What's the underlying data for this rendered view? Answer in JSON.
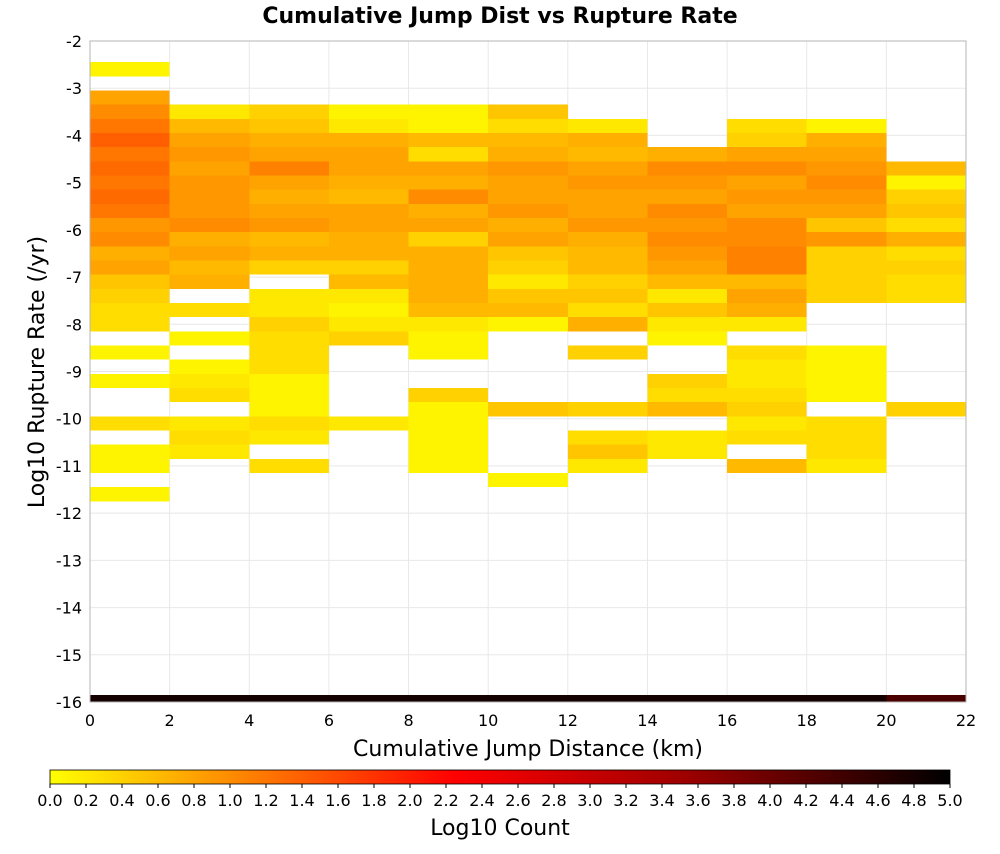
{
  "chart_data": {
    "type": "heatmap",
    "title": "Cumulative Jump Dist vs Rupture Rate",
    "xlabel": "Cumulative Jump Distance (km)",
    "ylabel": "Log10 Rupture Rate (/yr)",
    "xlim": [
      0,
      22
    ],
    "ylim": [
      -16,
      -2
    ],
    "x_ticks": [
      "0",
      "2",
      "4",
      "6",
      "8",
      "10",
      "12",
      "14",
      "16",
      "18",
      "20",
      "22"
    ],
    "y_ticks": [
      "-16",
      "-15",
      "-14",
      "-13",
      "-12",
      "-11",
      "-10",
      "-9",
      "-8",
      "-7",
      "-6",
      "-5",
      "-4",
      "-3",
      "-2"
    ],
    "grid": true,
    "x_bin_width": 2,
    "y_bin_height": 0.3,
    "colorbar": {
      "label": "Log10 Count",
      "min": 0.0,
      "max": 5.0,
      "ticks": [
        "0.0",
        "0.2",
        "0.4",
        "0.6",
        "0.8",
        "1.0",
        "1.2",
        "1.4",
        "1.6",
        "1.8",
        "2.0",
        "2.2",
        "2.4",
        "2.6",
        "2.8",
        "3.0",
        "3.2",
        "3.4",
        "3.6",
        "3.8",
        "4.0",
        "4.2",
        "4.4",
        "4.6",
        "4.8",
        "5.0"
      ],
      "stops": [
        [
          0.0,
          "#ffff00"
        ],
        [
          0.2,
          "#ff8c00"
        ],
        [
          0.45,
          "#ff0000"
        ],
        [
          0.7,
          "#a00000"
        ],
        [
          1.0,
          "#000000"
        ]
      ]
    },
    "columns": [
      {
        "x": 0,
        "rows": [
          {
            "y": -2.6,
            "v": 0.1
          },
          {
            "y": -3.2,
            "v": 0.8
          },
          {
            "y": -3.5,
            "v": 1.0
          },
          {
            "y": -3.8,
            "v": 1.2
          },
          {
            "y": -4.1,
            "v": 1.4
          },
          {
            "y": -4.4,
            "v": 1.2
          },
          {
            "y": -4.7,
            "v": 1.3
          },
          {
            "y": -5.0,
            "v": 1.2
          },
          {
            "y": -5.3,
            "v": 1.3
          },
          {
            "y": -5.6,
            "v": 1.2
          },
          {
            "y": -5.9,
            "v": 0.9
          },
          {
            "y": -6.2,
            "v": 1.0
          },
          {
            "y": -6.5,
            "v": 0.7
          },
          {
            "y": -6.8,
            "v": 0.8
          },
          {
            "y": -7.1,
            "v": 0.5
          },
          {
            "y": -7.4,
            "v": 0.4
          },
          {
            "y": -7.7,
            "v": 0.3
          },
          {
            "y": -8.0,
            "v": 0.3
          },
          {
            "y": -8.6,
            "v": 0.1
          },
          {
            "y": -9.2,
            "v": 0.1
          },
          {
            "y": -10.1,
            "v": 0.3
          },
          {
            "y": -10.7,
            "v": 0.1
          },
          {
            "y": -11.0,
            "v": 0.1
          },
          {
            "y": -11.6,
            "v": 0.1
          },
          {
            "y": -16.0,
            "v": 4.8
          }
        ]
      },
      {
        "x": 2,
        "rows": [
          {
            "y": -3.5,
            "v": 0.2
          },
          {
            "y": -3.8,
            "v": 0.6
          },
          {
            "y": -4.1,
            "v": 0.8
          },
          {
            "y": -4.4,
            "v": 0.9
          },
          {
            "y": -4.7,
            "v": 0.8
          },
          {
            "y": -5.0,
            "v": 0.9
          },
          {
            "y": -5.3,
            "v": 0.9
          },
          {
            "y": -5.6,
            "v": 0.9
          },
          {
            "y": -5.9,
            "v": 1.0
          },
          {
            "y": -6.2,
            "v": 0.7
          },
          {
            "y": -6.5,
            "v": 0.8
          },
          {
            "y": -6.8,
            "v": 0.6
          },
          {
            "y": -7.1,
            "v": 0.7
          },
          {
            "y": -7.7,
            "v": 0.3
          },
          {
            "y": -8.3,
            "v": 0.1
          },
          {
            "y": -8.9,
            "v": 0.1
          },
          {
            "y": -9.2,
            "v": 0.2
          },
          {
            "y": -9.5,
            "v": 0.3
          },
          {
            "y": -10.1,
            "v": 0.2
          },
          {
            "y": -10.4,
            "v": 0.3
          },
          {
            "y": -10.7,
            "v": 0.2
          },
          {
            "y": -16.0,
            "v": 4.8
          }
        ]
      },
      {
        "x": 4,
        "rows": [
          {
            "y": -3.5,
            "v": 0.4
          },
          {
            "y": -3.8,
            "v": 0.5
          },
          {
            "y": -4.1,
            "v": 0.7
          },
          {
            "y": -4.4,
            "v": 0.8
          },
          {
            "y": -4.7,
            "v": 1.1
          },
          {
            "y": -5.0,
            "v": 0.8
          },
          {
            "y": -5.3,
            "v": 0.7
          },
          {
            "y": -5.6,
            "v": 0.8
          },
          {
            "y": -5.9,
            "v": 0.9
          },
          {
            "y": -6.2,
            "v": 0.6
          },
          {
            "y": -6.5,
            "v": 0.7
          },
          {
            "y": -6.8,
            "v": 0.4
          },
          {
            "y": -7.4,
            "v": 0.2
          },
          {
            "y": -7.7,
            "v": 0.2
          },
          {
            "y": -8.0,
            "v": 0.4
          },
          {
            "y": -8.3,
            "v": 0.3
          },
          {
            "y": -8.6,
            "v": 0.3
          },
          {
            "y": -8.9,
            "v": 0.3
          },
          {
            "y": -9.2,
            "v": 0.1
          },
          {
            "y": -9.5,
            "v": 0.1
          },
          {
            "y": -9.8,
            "v": 0.1
          },
          {
            "y": -10.1,
            "v": 0.3
          },
          {
            "y": -10.4,
            "v": 0.2
          },
          {
            "y": -11.0,
            "v": 0.3
          },
          {
            "y": -16.0,
            "v": 4.8
          }
        ]
      },
      {
        "x": 6,
        "rows": [
          {
            "y": -3.5,
            "v": 0.1
          },
          {
            "y": -3.8,
            "v": 0.2
          },
          {
            "y": -4.1,
            "v": 0.7
          },
          {
            "y": -4.4,
            "v": 0.8
          },
          {
            "y": -4.7,
            "v": 0.8
          },
          {
            "y": -5.0,
            "v": 0.7
          },
          {
            "y": -5.3,
            "v": 0.6
          },
          {
            "y": -5.6,
            "v": 0.8
          },
          {
            "y": -5.9,
            "v": 0.8
          },
          {
            "y": -6.2,
            "v": 0.7
          },
          {
            "y": -6.5,
            "v": 0.7
          },
          {
            "y": -6.8,
            "v": 0.4
          },
          {
            "y": -7.1,
            "v": 0.6
          },
          {
            "y": -7.4,
            "v": 0.2
          },
          {
            "y": -7.7,
            "v": 0.1
          },
          {
            "y": -8.0,
            "v": 0.2
          },
          {
            "y": -8.3,
            "v": 0.4
          },
          {
            "y": -10.1,
            "v": 0.2
          },
          {
            "y": -16.0,
            "v": 4.8
          }
        ]
      },
      {
        "x": 8,
        "rows": [
          {
            "y": -3.5,
            "v": 0.1
          },
          {
            "y": -3.8,
            "v": 0.1
          },
          {
            "y": -4.1,
            "v": 0.6
          },
          {
            "y": -4.4,
            "v": 0.3
          },
          {
            "y": -4.7,
            "v": 0.8
          },
          {
            "y": -5.0,
            "v": 0.7
          },
          {
            "y": -5.3,
            "v": 1.0
          },
          {
            "y": -5.6,
            "v": 0.7
          },
          {
            "y": -5.9,
            "v": 0.8
          },
          {
            "y": -6.2,
            "v": 0.4
          },
          {
            "y": -6.5,
            "v": 0.7
          },
          {
            "y": -6.8,
            "v": 0.7
          },
          {
            "y": -7.1,
            "v": 0.7
          },
          {
            "y": -7.4,
            "v": 0.7
          },
          {
            "y": -7.7,
            "v": 0.6
          },
          {
            "y": -8.0,
            "v": 0.2
          },
          {
            "y": -8.3,
            "v": 0.1
          },
          {
            "y": -8.6,
            "v": 0.1
          },
          {
            "y": -9.5,
            "v": 0.4
          },
          {
            "y": -9.8,
            "v": 0.1
          },
          {
            "y": -10.1,
            "v": 0.1
          },
          {
            "y": -10.4,
            "v": 0.1
          },
          {
            "y": -10.7,
            "v": 0.1
          },
          {
            "y": -11.0,
            "v": 0.1
          },
          {
            "y": -16.0,
            "v": 4.8
          }
        ]
      },
      {
        "x": 10,
        "rows": [
          {
            "y": -3.5,
            "v": 0.5
          },
          {
            "y": -3.8,
            "v": 0.3
          },
          {
            "y": -4.1,
            "v": 0.6
          },
          {
            "y": -4.4,
            "v": 0.7
          },
          {
            "y": -4.7,
            "v": 0.9
          },
          {
            "y": -5.0,
            "v": 0.8
          },
          {
            "y": -5.3,
            "v": 0.8
          },
          {
            "y": -5.6,
            "v": 0.9
          },
          {
            "y": -5.9,
            "v": 0.7
          },
          {
            "y": -6.2,
            "v": 0.8
          },
          {
            "y": -6.5,
            "v": 0.5
          },
          {
            "y": -6.8,
            "v": 0.4
          },
          {
            "y": -7.1,
            "v": 0.2
          },
          {
            "y": -7.4,
            "v": 0.5
          },
          {
            "y": -7.7,
            "v": 0.6
          },
          {
            "y": -8.0,
            "v": 0.1
          },
          {
            "y": -9.8,
            "v": 0.5
          },
          {
            "y": -11.3,
            "v": 0.1
          },
          {
            "y": -16.0,
            "v": 4.8
          }
        ]
      },
      {
        "x": 12,
        "rows": [
          {
            "y": -3.8,
            "v": 0.2
          },
          {
            "y": -4.1,
            "v": 0.7
          },
          {
            "y": -4.4,
            "v": 0.6
          },
          {
            "y": -4.7,
            "v": 0.8
          },
          {
            "y": -5.0,
            "v": 0.9
          },
          {
            "y": -5.3,
            "v": 0.8
          },
          {
            "y": -5.6,
            "v": 0.8
          },
          {
            "y": -5.9,
            "v": 0.9
          },
          {
            "y": -6.2,
            "v": 0.7
          },
          {
            "y": -6.5,
            "v": 0.6
          },
          {
            "y": -6.8,
            "v": 0.6
          },
          {
            "y": -7.1,
            "v": 0.4
          },
          {
            "y": -7.4,
            "v": 0.5
          },
          {
            "y": -7.7,
            "v": 0.3
          },
          {
            "y": -8.0,
            "v": 0.7
          },
          {
            "y": -8.6,
            "v": 0.4
          },
          {
            "y": -9.8,
            "v": 0.4
          },
          {
            "y": -10.4,
            "v": 0.3
          },
          {
            "y": -10.7,
            "v": 0.5
          },
          {
            "y": -11.0,
            "v": 0.2
          },
          {
            "y": -16.0,
            "v": 4.8
          }
        ]
      },
      {
        "x": 14,
        "rows": [
          {
            "y": -4.4,
            "v": 0.7
          },
          {
            "y": -4.7,
            "v": 1.0
          },
          {
            "y": -5.0,
            "v": 0.9
          },
          {
            "y": -5.3,
            "v": 0.8
          },
          {
            "y": -5.6,
            "v": 1.0
          },
          {
            "y": -5.9,
            "v": 0.9
          },
          {
            "y": -6.2,
            "v": 1.0
          },
          {
            "y": -6.5,
            "v": 0.9
          },
          {
            "y": -6.8,
            "v": 0.8
          },
          {
            "y": -7.1,
            "v": 0.6
          },
          {
            "y": -7.4,
            "v": 0.2
          },
          {
            "y": -7.7,
            "v": 0.5
          },
          {
            "y": -8.0,
            "v": 0.2
          },
          {
            "y": -8.3,
            "v": 0.1
          },
          {
            "y": -9.2,
            "v": 0.4
          },
          {
            "y": -9.5,
            "v": 0.3
          },
          {
            "y": -9.8,
            "v": 0.6
          },
          {
            "y": -10.4,
            "v": 0.2
          },
          {
            "y": -10.7,
            "v": 0.2
          },
          {
            "y": -16.0,
            "v": 4.8
          }
        ]
      },
      {
        "x": 16,
        "rows": [
          {
            "y": -3.8,
            "v": 0.3
          },
          {
            "y": -4.1,
            "v": 0.4
          },
          {
            "y": -4.4,
            "v": 0.8
          },
          {
            "y": -4.7,
            "v": 1.0
          },
          {
            "y": -5.0,
            "v": 0.8
          },
          {
            "y": -5.3,
            "v": 0.9
          },
          {
            "y": -5.6,
            "v": 0.8
          },
          {
            "y": -5.9,
            "v": 1.0
          },
          {
            "y": -6.2,
            "v": 1.0
          },
          {
            "y": -6.5,
            "v": 1.1
          },
          {
            "y": -6.8,
            "v": 1.1
          },
          {
            "y": -7.1,
            "v": 0.6
          },
          {
            "y": -7.4,
            "v": 0.8
          },
          {
            "y": -7.7,
            "v": 0.7
          },
          {
            "y": -8.0,
            "v": 0.2
          },
          {
            "y": -8.6,
            "v": 0.3
          },
          {
            "y": -8.9,
            "v": 0.2
          },
          {
            "y": -9.2,
            "v": 0.2
          },
          {
            "y": -9.5,
            "v": 0.3
          },
          {
            "y": -9.8,
            "v": 0.4
          },
          {
            "y": -10.1,
            "v": 0.2
          },
          {
            "y": -10.4,
            "v": 0.3
          },
          {
            "y": -11.0,
            "v": 0.6
          },
          {
            "y": -16.0,
            "v": 4.8
          }
        ]
      },
      {
        "x": 18,
        "rows": [
          {
            "y": -3.8,
            "v": 0.1
          },
          {
            "y": -4.1,
            "v": 0.7
          },
          {
            "y": -4.4,
            "v": 0.8
          },
          {
            "y": -4.7,
            "v": 0.9
          },
          {
            "y": -5.0,
            "v": 1.0
          },
          {
            "y": -5.3,
            "v": 0.9
          },
          {
            "y": -5.6,
            "v": 0.8
          },
          {
            "y": -5.9,
            "v": 0.5
          },
          {
            "y": -6.2,
            "v": 0.9
          },
          {
            "y": -6.5,
            "v": 0.4
          },
          {
            "y": -6.8,
            "v": 0.4
          },
          {
            "y": -7.1,
            "v": 0.4
          },
          {
            "y": -7.4,
            "v": 0.4
          },
          {
            "y": -8.6,
            "v": 0.1
          },
          {
            "y": -8.9,
            "v": 0.1
          },
          {
            "y": -9.2,
            "v": 0.1
          },
          {
            "y": -9.5,
            "v": 0.1
          },
          {
            "y": -10.1,
            "v": 0.3
          },
          {
            "y": -10.4,
            "v": 0.3
          },
          {
            "y": -10.7,
            "v": 0.3
          },
          {
            "y": -11.0,
            "v": 0.2
          },
          {
            "y": -16.0,
            "v": 4.8
          }
        ]
      },
      {
        "x": 20,
        "rows": [
          {
            "y": -4.7,
            "v": 0.6
          },
          {
            "y": -5.0,
            "v": 0.1
          },
          {
            "y": -5.3,
            "v": 0.4
          },
          {
            "y": -5.6,
            "v": 0.5
          },
          {
            "y": -5.9,
            "v": 0.3
          },
          {
            "y": -6.2,
            "v": 0.7
          },
          {
            "y": -6.5,
            "v": 0.3
          },
          {
            "y": -6.8,
            "v": 0.4
          },
          {
            "y": -7.1,
            "v": 0.3
          },
          {
            "y": -7.4,
            "v": 0.3
          },
          {
            "y": -9.8,
            "v": 0.4
          },
          {
            "y": -16.0,
            "v": 4.3
          }
        ]
      }
    ]
  }
}
